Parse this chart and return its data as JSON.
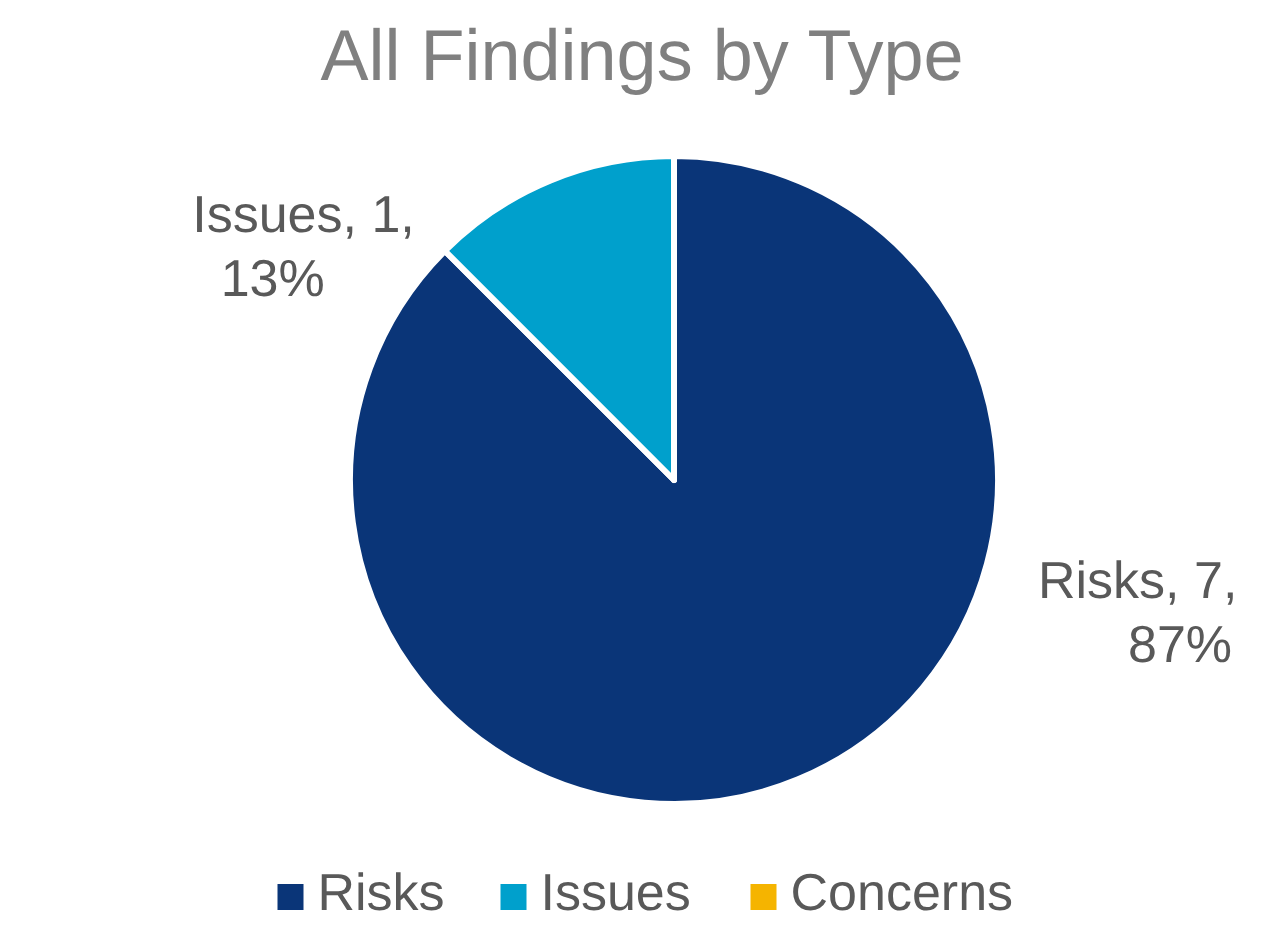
{
  "chart_data": {
    "type": "pie",
    "title": "All Findings by Type",
    "categories": [
      "Risks",
      "Issues",
      "Concerns"
    ],
    "values": [
      7,
      1,
      0
    ],
    "colors": [
      "#0a3578",
      "#00a0cc",
      "#f5b400"
    ],
    "value_labels": [
      "Risks, 7, 87%",
      "Issues, 1, 13%",
      null
    ],
    "legend": "bottom"
  }
}
